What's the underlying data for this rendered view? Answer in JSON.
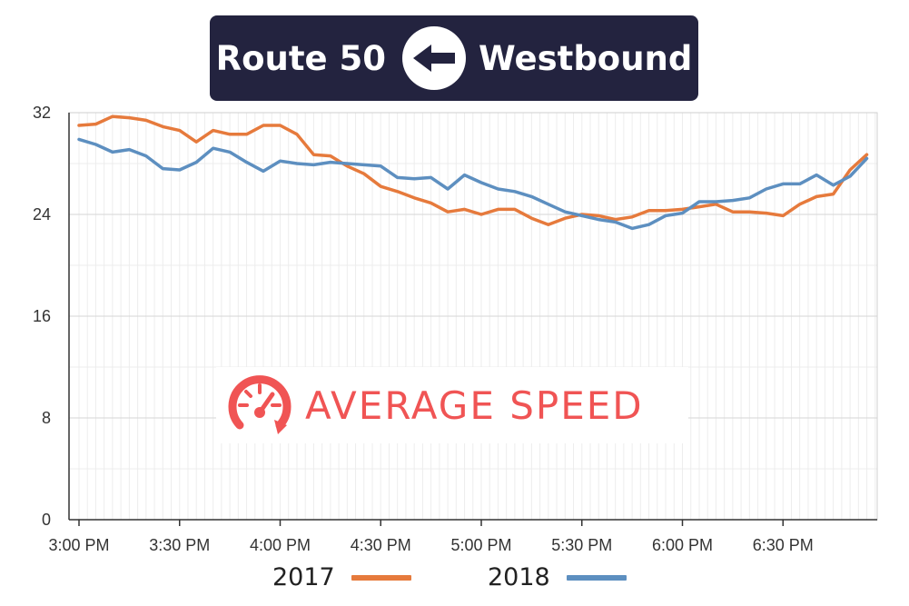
{
  "banner": {
    "route": "Route 50",
    "direction": "Westbound",
    "arrow_icon": "left-arrow-icon"
  },
  "badge": {
    "text": "AVERAGE SPEED",
    "icon": "speedometer-icon",
    "color": "#f05454"
  },
  "chart_data": {
    "type": "line",
    "title": "",
    "xlabel": "",
    "ylabel": "",
    "ylim": [
      0,
      32
    ],
    "y_ticks": [
      0,
      8,
      16,
      24,
      32
    ],
    "x_tick_labels": [
      "3:00 PM",
      "3:30 PM",
      "4:00 PM",
      "4:30 PM",
      "5:00 PM",
      "5:30 PM",
      "6:00 PM",
      "6:30 PM"
    ],
    "x_tick_minutes": [
      0,
      30,
      60,
      90,
      120,
      150,
      180,
      210
    ],
    "x_minutes": [
      0,
      5,
      10,
      15,
      20,
      25,
      30,
      35,
      40,
      45,
      50,
      55,
      60,
      65,
      70,
      75,
      80,
      85,
      90,
      95,
      100,
      105,
      110,
      115,
      120,
      125,
      130,
      135,
      140,
      145,
      150,
      155,
      160,
      165,
      170,
      175,
      180,
      185,
      190,
      195,
      200,
      205,
      210,
      215,
      220,
      225,
      230,
      235
    ],
    "grid": true,
    "legend_position": "bottom",
    "series": [
      {
        "name": "2017",
        "color": "#e67a3c",
        "values": [
          31.0,
          31.1,
          31.7,
          31.6,
          31.4,
          30.9,
          30.6,
          29.7,
          30.6,
          30.3,
          30.3,
          31.0,
          31.0,
          30.3,
          28.7,
          28.6,
          27.8,
          27.2,
          26.2,
          25.8,
          25.3,
          24.9,
          24.2,
          24.4,
          24.0,
          24.4,
          24.4,
          23.7,
          23.2,
          23.7,
          24.0,
          23.9,
          23.6,
          23.8,
          24.3,
          24.3,
          24.4,
          24.6,
          24.8,
          24.2,
          24.2,
          24.1,
          23.9,
          24.8,
          25.4,
          25.6,
          27.5,
          28.7
        ]
      },
      {
        "name": "2018",
        "color": "#5d8fc0",
        "values": [
          29.9,
          29.5,
          28.9,
          29.1,
          28.6,
          27.6,
          27.5,
          28.1,
          29.2,
          28.9,
          28.1,
          27.4,
          28.2,
          28.0,
          27.9,
          28.1,
          28.0,
          27.9,
          27.8,
          26.9,
          26.8,
          26.9,
          26.0,
          27.1,
          26.5,
          26.0,
          25.8,
          25.4,
          24.8,
          24.2,
          23.9,
          23.6,
          23.4,
          22.9,
          23.2,
          23.9,
          24.1,
          25.0,
          25.0,
          25.1,
          25.3,
          26.0,
          26.4,
          26.4,
          27.1,
          26.3,
          27.0,
          28.4
        ]
      }
    ]
  }
}
